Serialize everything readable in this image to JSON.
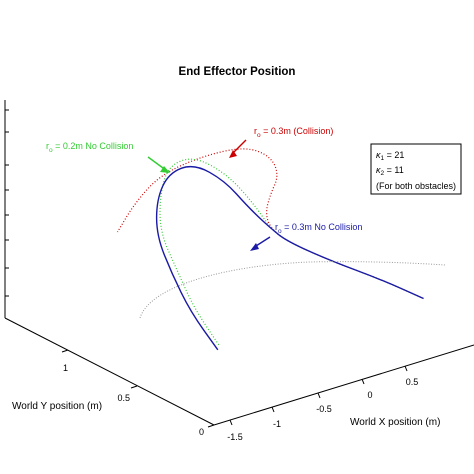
{
  "chart_data": {
    "type": "line",
    "title": "End Effector Position",
    "xlabel": "World X position (m)",
    "ylabel": "World Y position (m)",
    "x_ticks": [
      "-1.5",
      "-1",
      "-0.5",
      "0",
      "0.5"
    ],
    "y_ticks": [
      "0",
      "0.5",
      "1"
    ],
    "series": [
      {
        "name": "r0 = 0.3m (Collision)",
        "color": "#cc0000",
        "style": "dotted",
        "x": [
          0.55,
          0.3,
          0.0,
          -0.25,
          -0.35,
          -0.38,
          -0.35,
          -0.3,
          -0.35,
          -0.5,
          -0.75,
          -1.0,
          -1.15,
          -1.25
        ],
        "y": [
          0.35,
          0.45,
          0.55,
          0.65,
          0.72,
          0.8,
          0.9,
          1.0,
          1.1,
          1.15,
          1.1,
          1.0,
          0.85,
          0.7
        ]
      },
      {
        "name": "r0 = 0.2m No Collision",
        "color": "#33cc33",
        "style": "dotted",
        "x": [
          0.55,
          0.3,
          0.0,
          -0.25,
          -0.35,
          -0.45,
          -0.6,
          -0.8,
          -0.95,
          -1.0,
          -1.0,
          -0.9,
          -0.8,
          -0.65
        ],
        "y": [
          0.35,
          0.45,
          0.55,
          0.65,
          0.72,
          0.85,
          1.0,
          1.1,
          1.05,
          0.9,
          0.7,
          0.5,
          0.3,
          0.1
        ]
      },
      {
        "name": "r0 = 0.3m No Collision",
        "color": "#1a1aa6",
        "style": "solid",
        "x": [
          0.55,
          0.3,
          0.0,
          -0.25,
          -0.35,
          -0.48,
          -0.62,
          -0.8,
          -0.95,
          -1.02,
          -1.02,
          -0.93,
          -0.82,
          -0.66
        ],
        "y": [
          0.35,
          0.45,
          0.55,
          0.65,
          0.72,
          0.83,
          0.97,
          1.06,
          1.01,
          0.87,
          0.68,
          0.48,
          0.28,
          0.08
        ]
      }
    ],
    "annotations": {
      "red": {
        "pre": "r",
        "sub": "o",
        "post": " = 0.3m (Collision)",
        "color": "#cc0000"
      },
      "green": {
        "pre": "r",
        "sub": "o",
        "post": " = 0.2m No Collision",
        "color": "#33cc33"
      },
      "blue": {
        "pre": "r",
        "sub": "o",
        "post": " = 0.3m No Collision",
        "color": "#1a1aa6"
      }
    },
    "legend_box": {
      "lines": [
        {
          "sym": "κ",
          "sub": "1",
          "post": " = 21"
        },
        {
          "sym": "κ",
          "sub": "2",
          "post": " = 11"
        },
        {
          "sym": "",
          "sub": "",
          "post": "(For both obstacles)"
        }
      ]
    },
    "grid": false
  }
}
